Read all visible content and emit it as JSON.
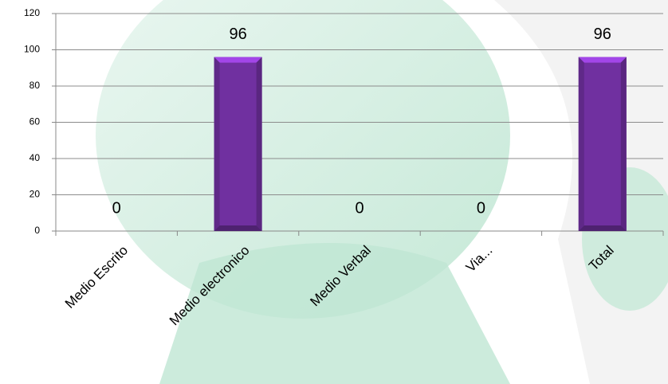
{
  "chart_data": {
    "type": "bar",
    "categories": [
      "Medio Escrito",
      "Medio electronico",
      "Medio Verbal",
      "Via...",
      "Total"
    ],
    "values": [
      0,
      96,
      0,
      0,
      96
    ],
    "color": "#7030a0",
    "ylim": [
      0,
      120
    ],
    "yticks": [
      0,
      20,
      40,
      60,
      80,
      100,
      120
    ],
    "grid": true
  }
}
